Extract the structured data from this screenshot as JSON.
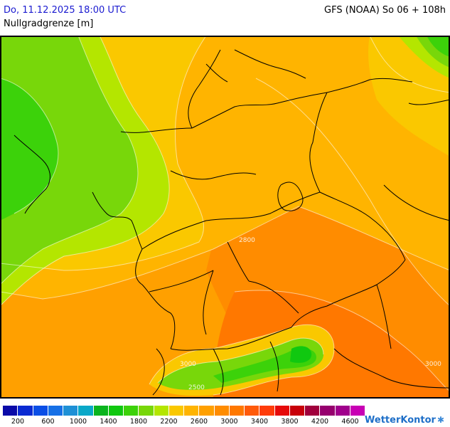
{
  "header": {
    "datetime": "Do, 11.12.2025 18:00 UTC",
    "parameter": "Nullgradgrenze [m]",
    "model_run": "GFS (NOAA) So 06 + 108h"
  },
  "map": {
    "contour_labels": [
      "2800",
      "3000",
      "3000",
      "2500"
    ]
  },
  "legend": {
    "colors": [
      "#0a0aa8",
      "#0a2ad2",
      "#0a4ee6",
      "#1670e6",
      "#1e90d6",
      "#0aa8c8",
      "#0ab41e",
      "#10c810",
      "#3cd20a",
      "#78d70a",
      "#b4e600",
      "#fac800",
      "#ffb400",
      "#ffa000",
      "#ff8c00",
      "#ff7800",
      "#ff5a0a",
      "#ff3c0a",
      "#e60a0a",
      "#c8000a",
      "#a0003c",
      "#96006e",
      "#a0008c",
      "#c800b4"
    ],
    "ticks": [
      "200",
      "600",
      "1000",
      "1400",
      "1800",
      "2200",
      "2600",
      "3000",
      "3400",
      "3800",
      "4200",
      "4600"
    ]
  },
  "brand": {
    "name": "WetterKontor"
  }
}
